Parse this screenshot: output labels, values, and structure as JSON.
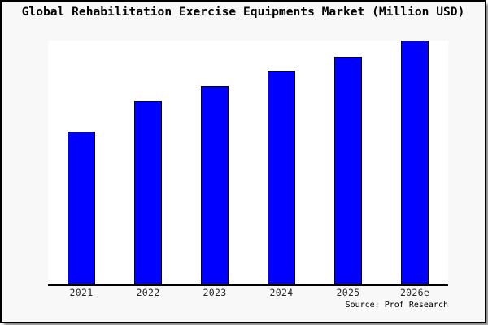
{
  "chart_data": {
    "type": "bar",
    "title": "Global Rehabilitation Exercise Equipments Market (Million USD)",
    "categories": [
      "2021",
      "2022",
      "2023",
      "2024",
      "2025",
      "2026e"
    ],
    "values": [
      62.7,
      75.3,
      81.4,
      87.7,
      93.5,
      100
    ],
    "ylim": [
      0,
      100
    ],
    "xlabel": "",
    "ylabel": "",
    "gridlines": false,
    "legend": "none",
    "y_axis_labels_visible": false,
    "note": "No numeric y-axis shown in image; values are relative bar heights indexed to 2026e = 100",
    "bar_color": "#0000ff",
    "bar_border_color": "#000000"
  },
  "source": {
    "label": "Source: Prof Research"
  },
  "colors": {
    "page_bg": "#f8f8f8",
    "plot_bg": "#ffffff",
    "axis": "#000000",
    "frame_border": "#000000",
    "tick_text": "#262626",
    "title_text": "#000000"
  }
}
